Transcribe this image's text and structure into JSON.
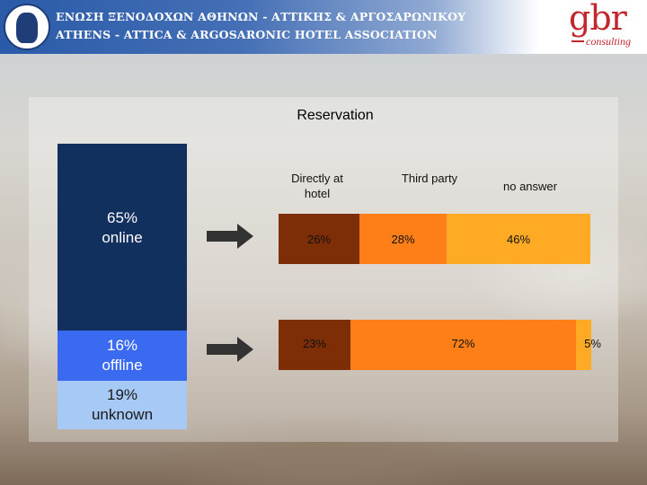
{
  "header": {
    "association_greek": "ΕΝΩΣΗ ΞΕΝΟΔΟΧΩΝ ΑΘΗΝΩΝ - ΑΤΤΙΚΗΣ & ΑΡΓΟΣΑΡΩΝΙΚΟΥ",
    "association_english": "ATHENS - ATTICA & ARGOSARONIC HOTEL ASSOCIATION",
    "brand": "gbr",
    "brand_sub": "consulting"
  },
  "colors": {
    "online": "#12305e",
    "offline": "#3a6af0",
    "unknown": "#a6c9f5",
    "directly": "#7e2e07",
    "third_party": "#fe7f18",
    "no_answer": "#feaa25",
    "arrow": "#333333"
  },
  "chart_data": {
    "type": "bar",
    "orientation": "horizontal",
    "stacked": true,
    "percent": true,
    "title": "Reservation",
    "legend": [
      "Directly at hotel",
      "Third party",
      "no answer"
    ],
    "categories": [
      "online",
      "offline"
    ],
    "segments": [
      {
        "pct": "65%",
        "name": "online",
        "share": 65
      },
      {
        "pct": "16%",
        "name": "offline",
        "share": 16
      },
      {
        "pct": "19%",
        "name": "unknown",
        "share": 19
      }
    ],
    "series": [
      {
        "name": "Directly at hotel",
        "values": [
          26,
          23
        ],
        "labels": [
          "26%",
          "23%"
        ]
      },
      {
        "name": "Third party",
        "values": [
          28,
          72
        ],
        "labels": [
          "28%",
          "72%"
        ]
      },
      {
        "name": "no answer",
        "values": [
          46,
          5
        ],
        "labels": [
          "46%",
          "5%"
        ]
      }
    ]
  }
}
